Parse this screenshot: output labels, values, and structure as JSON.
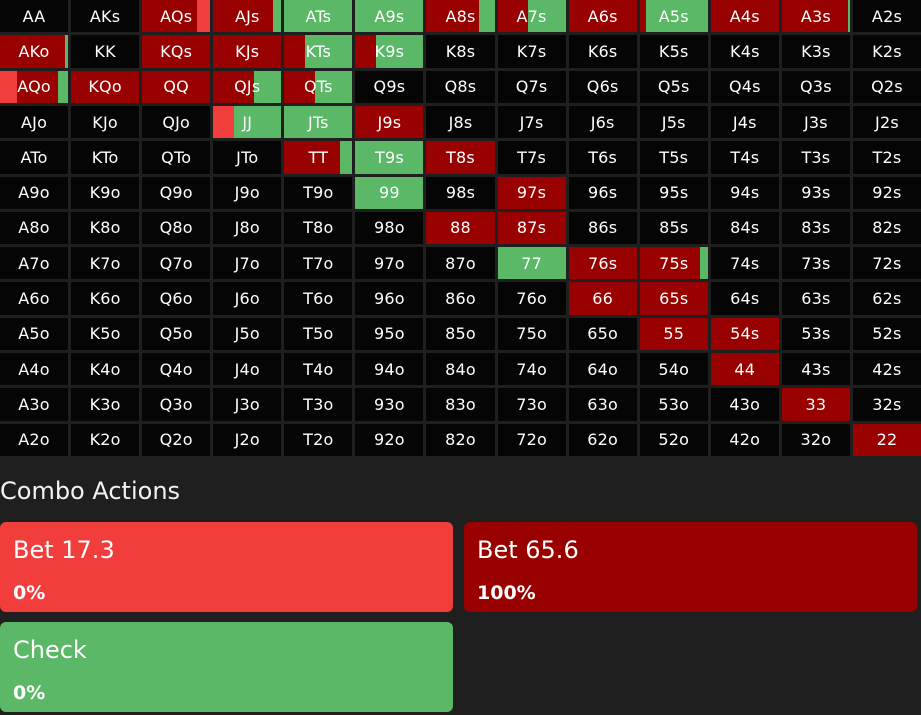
{
  "colors": {
    "bet_small": "#f23d3d",
    "bet_big": "#990000",
    "check": "#5ab866",
    "empty": "#050505",
    "background": "#1f1f1f"
  },
  "grid": {
    "rows": [
      [
        {
          "label": "AA",
          "mix": []
        },
        {
          "label": "AKs",
          "mix": []
        },
        {
          "label": "AQs",
          "mix": [
            {
              "action": "bet_big",
              "frac": 0.8
            },
            {
              "action": "bet_small",
              "frac": 0.2
            }
          ]
        },
        {
          "label": "AJs",
          "mix": [
            {
              "action": "bet_big",
              "frac": 0.88
            },
            {
              "action": "check",
              "frac": 0.12
            }
          ]
        },
        {
          "label": "ATs",
          "mix": [
            {
              "action": "check",
              "frac": 1.0
            }
          ]
        },
        {
          "label": "A9s",
          "mix": [
            {
              "action": "check",
              "frac": 1.0
            }
          ]
        },
        {
          "label": "A8s",
          "mix": [
            {
              "action": "bet_big",
              "frac": 0.77
            },
            {
              "action": "check",
              "frac": 0.23
            }
          ]
        },
        {
          "label": "A7s",
          "mix": [
            {
              "action": "bet_big",
              "frac": 0.45
            },
            {
              "action": "check",
              "frac": 0.55
            }
          ]
        },
        {
          "label": "A6s",
          "mix": [
            {
              "action": "bet_big",
              "frac": 1.0
            }
          ]
        },
        {
          "label": "A5s",
          "mix": [
            {
              "action": "bet_big",
              "frac": 0.1
            },
            {
              "action": "check",
              "frac": 0.9
            }
          ]
        },
        {
          "label": "A4s",
          "mix": [
            {
              "action": "bet_big",
              "frac": 1.0
            }
          ]
        },
        {
          "label": "A3s",
          "mix": [
            {
              "action": "bet_big",
              "frac": 0.97
            },
            {
              "action": "check",
              "frac": 0.03
            }
          ]
        },
        {
          "label": "A2s",
          "mix": []
        }
      ],
      [
        {
          "label": "AKo",
          "mix": [
            {
              "action": "bet_big",
              "frac": 0.95
            },
            {
              "action": "check",
              "frac": 0.05
            }
          ]
        },
        {
          "label": "KK",
          "mix": []
        },
        {
          "label": "KQs",
          "mix": [
            {
              "action": "bet_big",
              "frac": 1.0
            }
          ]
        },
        {
          "label": "KJs",
          "mix": [
            {
              "action": "bet_big",
              "frac": 1.0
            }
          ]
        },
        {
          "label": "KTs",
          "mix": [
            {
              "action": "bet_big",
              "frac": 0.3
            },
            {
              "action": "check",
              "frac": 0.7
            }
          ]
        },
        {
          "label": "K9s",
          "mix": [
            {
              "action": "bet_big",
              "frac": 0.3
            },
            {
              "action": "check",
              "frac": 0.7
            }
          ]
        },
        {
          "label": "K8s",
          "mix": []
        },
        {
          "label": "K7s",
          "mix": []
        },
        {
          "label": "K6s",
          "mix": []
        },
        {
          "label": "K5s",
          "mix": []
        },
        {
          "label": "K4s",
          "mix": []
        },
        {
          "label": "K3s",
          "mix": []
        },
        {
          "label": "K2s",
          "mix": []
        }
      ],
      [
        {
          "label": "AQo",
          "mix": [
            {
              "action": "bet_small",
              "frac": 0.25
            },
            {
              "action": "bet_big",
              "frac": 0.6
            },
            {
              "action": "check",
              "frac": 0.15
            }
          ]
        },
        {
          "label": "KQo",
          "mix": [
            {
              "action": "bet_big",
              "frac": 1.0
            }
          ]
        },
        {
          "label": "QQ",
          "mix": [
            {
              "action": "bet_big",
              "frac": 1.0
            }
          ]
        },
        {
          "label": "QJs",
          "mix": [
            {
              "action": "bet_big",
              "frac": 0.6
            },
            {
              "action": "check",
              "frac": 0.4
            }
          ]
        },
        {
          "label": "QTs",
          "mix": [
            {
              "action": "bet_big",
              "frac": 0.45
            },
            {
              "action": "check",
              "frac": 0.55
            }
          ]
        },
        {
          "label": "Q9s",
          "mix": []
        },
        {
          "label": "Q8s",
          "mix": []
        },
        {
          "label": "Q7s",
          "mix": []
        },
        {
          "label": "Q6s",
          "mix": []
        },
        {
          "label": "Q5s",
          "mix": []
        },
        {
          "label": "Q4s",
          "mix": []
        },
        {
          "label": "Q3s",
          "mix": []
        },
        {
          "label": "Q2s",
          "mix": []
        }
      ],
      [
        {
          "label": "AJo",
          "mix": []
        },
        {
          "label": "KJo",
          "mix": []
        },
        {
          "label": "QJo",
          "mix": []
        },
        {
          "label": "JJ",
          "mix": [
            {
              "action": "bet_small",
              "frac": 0.3
            },
            {
              "action": "check",
              "frac": 0.7
            }
          ]
        },
        {
          "label": "JTs",
          "mix": [
            {
              "action": "check",
              "frac": 1.0
            }
          ]
        },
        {
          "label": "J9s",
          "mix": [
            {
              "action": "bet_big",
              "frac": 1.0
            }
          ]
        },
        {
          "label": "J8s",
          "mix": []
        },
        {
          "label": "J7s",
          "mix": []
        },
        {
          "label": "J6s",
          "mix": []
        },
        {
          "label": "J5s",
          "mix": []
        },
        {
          "label": "J4s",
          "mix": []
        },
        {
          "label": "J3s",
          "mix": []
        },
        {
          "label": "J2s",
          "mix": []
        }
      ],
      [
        {
          "label": "ATo",
          "mix": []
        },
        {
          "label": "KTo",
          "mix": []
        },
        {
          "label": "QTo",
          "mix": []
        },
        {
          "label": "JTo",
          "mix": []
        },
        {
          "label": "TT",
          "mix": [
            {
              "action": "bet_big",
              "frac": 0.82
            },
            {
              "action": "check",
              "frac": 0.18
            }
          ]
        },
        {
          "label": "T9s",
          "mix": [
            {
              "action": "check",
              "frac": 1.0
            }
          ]
        },
        {
          "label": "T8s",
          "mix": [
            {
              "action": "bet_big",
              "frac": 1.0
            }
          ]
        },
        {
          "label": "T7s",
          "mix": []
        },
        {
          "label": "T6s",
          "mix": []
        },
        {
          "label": "T5s",
          "mix": []
        },
        {
          "label": "T4s",
          "mix": []
        },
        {
          "label": "T3s",
          "mix": []
        },
        {
          "label": "T2s",
          "mix": []
        }
      ],
      [
        {
          "label": "A9o",
          "mix": []
        },
        {
          "label": "K9o",
          "mix": []
        },
        {
          "label": "Q9o",
          "mix": []
        },
        {
          "label": "J9o",
          "mix": []
        },
        {
          "label": "T9o",
          "mix": []
        },
        {
          "label": "99",
          "mix": [
            {
              "action": "check",
              "frac": 1.0
            }
          ]
        },
        {
          "label": "98s",
          "mix": []
        },
        {
          "label": "97s",
          "mix": [
            {
              "action": "bet_big",
              "frac": 1.0
            }
          ]
        },
        {
          "label": "96s",
          "mix": []
        },
        {
          "label": "95s",
          "mix": []
        },
        {
          "label": "94s",
          "mix": []
        },
        {
          "label": "93s",
          "mix": []
        },
        {
          "label": "92s",
          "mix": []
        }
      ],
      [
        {
          "label": "A8o",
          "mix": []
        },
        {
          "label": "K8o",
          "mix": []
        },
        {
          "label": "Q8o",
          "mix": []
        },
        {
          "label": "J8o",
          "mix": []
        },
        {
          "label": "T8o",
          "mix": []
        },
        {
          "label": "98o",
          "mix": []
        },
        {
          "label": "88",
          "mix": [
            {
              "action": "bet_big",
              "frac": 1.0
            }
          ]
        },
        {
          "label": "87s",
          "mix": [
            {
              "action": "bet_big",
              "frac": 1.0
            }
          ]
        },
        {
          "label": "86s",
          "mix": []
        },
        {
          "label": "85s",
          "mix": []
        },
        {
          "label": "84s",
          "mix": []
        },
        {
          "label": "83s",
          "mix": []
        },
        {
          "label": "82s",
          "mix": []
        }
      ],
      [
        {
          "label": "A7o",
          "mix": []
        },
        {
          "label": "K7o",
          "mix": []
        },
        {
          "label": "Q7o",
          "mix": []
        },
        {
          "label": "J7o",
          "mix": []
        },
        {
          "label": "T7o",
          "mix": []
        },
        {
          "label": "97o",
          "mix": []
        },
        {
          "label": "87o",
          "mix": []
        },
        {
          "label": "77",
          "mix": [
            {
              "action": "check",
              "frac": 1.0
            }
          ]
        },
        {
          "label": "76s",
          "mix": [
            {
              "action": "bet_big",
              "frac": 1.0
            }
          ]
        },
        {
          "label": "75s",
          "mix": [
            {
              "action": "bet_big",
              "frac": 0.88
            },
            {
              "action": "check",
              "frac": 0.12
            }
          ]
        },
        {
          "label": "74s",
          "mix": []
        },
        {
          "label": "73s",
          "mix": []
        },
        {
          "label": "72s",
          "mix": []
        }
      ],
      [
        {
          "label": "A6o",
          "mix": []
        },
        {
          "label": "K6o",
          "mix": []
        },
        {
          "label": "Q6o",
          "mix": []
        },
        {
          "label": "J6o",
          "mix": []
        },
        {
          "label": "T6o",
          "mix": []
        },
        {
          "label": "96o",
          "mix": []
        },
        {
          "label": "86o",
          "mix": []
        },
        {
          "label": "76o",
          "mix": []
        },
        {
          "label": "66",
          "mix": [
            {
              "action": "bet_big",
              "frac": 1.0
            }
          ]
        },
        {
          "label": "65s",
          "mix": [
            {
              "action": "bet_big",
              "frac": 1.0
            }
          ]
        },
        {
          "label": "64s",
          "mix": []
        },
        {
          "label": "63s",
          "mix": []
        },
        {
          "label": "62s",
          "mix": []
        }
      ],
      [
        {
          "label": "A5o",
          "mix": []
        },
        {
          "label": "K5o",
          "mix": []
        },
        {
          "label": "Q5o",
          "mix": []
        },
        {
          "label": "J5o",
          "mix": []
        },
        {
          "label": "T5o",
          "mix": []
        },
        {
          "label": "95o",
          "mix": []
        },
        {
          "label": "85o",
          "mix": []
        },
        {
          "label": "75o",
          "mix": []
        },
        {
          "label": "65o",
          "mix": []
        },
        {
          "label": "55",
          "mix": [
            {
              "action": "bet_big",
              "frac": 1.0
            }
          ]
        },
        {
          "label": "54s",
          "mix": [
            {
              "action": "bet_big",
              "frac": 1.0
            }
          ]
        },
        {
          "label": "53s",
          "mix": []
        },
        {
          "label": "52s",
          "mix": []
        }
      ],
      [
        {
          "label": "A4o",
          "mix": []
        },
        {
          "label": "K4o",
          "mix": []
        },
        {
          "label": "Q4o",
          "mix": []
        },
        {
          "label": "J4o",
          "mix": []
        },
        {
          "label": "T4o",
          "mix": []
        },
        {
          "label": "94o",
          "mix": []
        },
        {
          "label": "84o",
          "mix": []
        },
        {
          "label": "74o",
          "mix": []
        },
        {
          "label": "64o",
          "mix": []
        },
        {
          "label": "54o",
          "mix": []
        },
        {
          "label": "44",
          "mix": [
            {
              "action": "bet_big",
              "frac": 1.0
            }
          ]
        },
        {
          "label": "43s",
          "mix": []
        },
        {
          "label": "42s",
          "mix": []
        }
      ],
      [
        {
          "label": "A3o",
          "mix": []
        },
        {
          "label": "K3o",
          "mix": []
        },
        {
          "label": "Q3o",
          "mix": []
        },
        {
          "label": "J3o",
          "mix": []
        },
        {
          "label": "T3o",
          "mix": []
        },
        {
          "label": "93o",
          "mix": []
        },
        {
          "label": "83o",
          "mix": []
        },
        {
          "label": "73o",
          "mix": []
        },
        {
          "label": "63o",
          "mix": []
        },
        {
          "label": "53o",
          "mix": []
        },
        {
          "label": "43o",
          "mix": []
        },
        {
          "label": "33",
          "mix": [
            {
              "action": "bet_big",
              "frac": 1.0
            }
          ]
        },
        {
          "label": "32s",
          "mix": []
        }
      ],
      [
        {
          "label": "A2o",
          "mix": []
        },
        {
          "label": "K2o",
          "mix": []
        },
        {
          "label": "Q2o",
          "mix": []
        },
        {
          "label": "J2o",
          "mix": []
        },
        {
          "label": "T2o",
          "mix": []
        },
        {
          "label": "92o",
          "mix": []
        },
        {
          "label": "82o",
          "mix": []
        },
        {
          "label": "72o",
          "mix": []
        },
        {
          "label": "62o",
          "mix": []
        },
        {
          "label": "52o",
          "mix": []
        },
        {
          "label": "42o",
          "mix": []
        },
        {
          "label": "32o",
          "mix": []
        },
        {
          "label": "22",
          "mix": [
            {
              "action": "bet_big",
              "frac": 1.0
            }
          ]
        }
      ]
    ]
  },
  "combo": {
    "title": "Combo Actions",
    "actions": [
      {
        "name": "Bet 17.3",
        "percent": "0%",
        "color": "#f23d3d"
      },
      {
        "name": "Bet 65.6",
        "percent": "100%",
        "color": "#990000"
      },
      {
        "name": "Check",
        "percent": "0%",
        "color": "#5ab866"
      }
    ]
  }
}
